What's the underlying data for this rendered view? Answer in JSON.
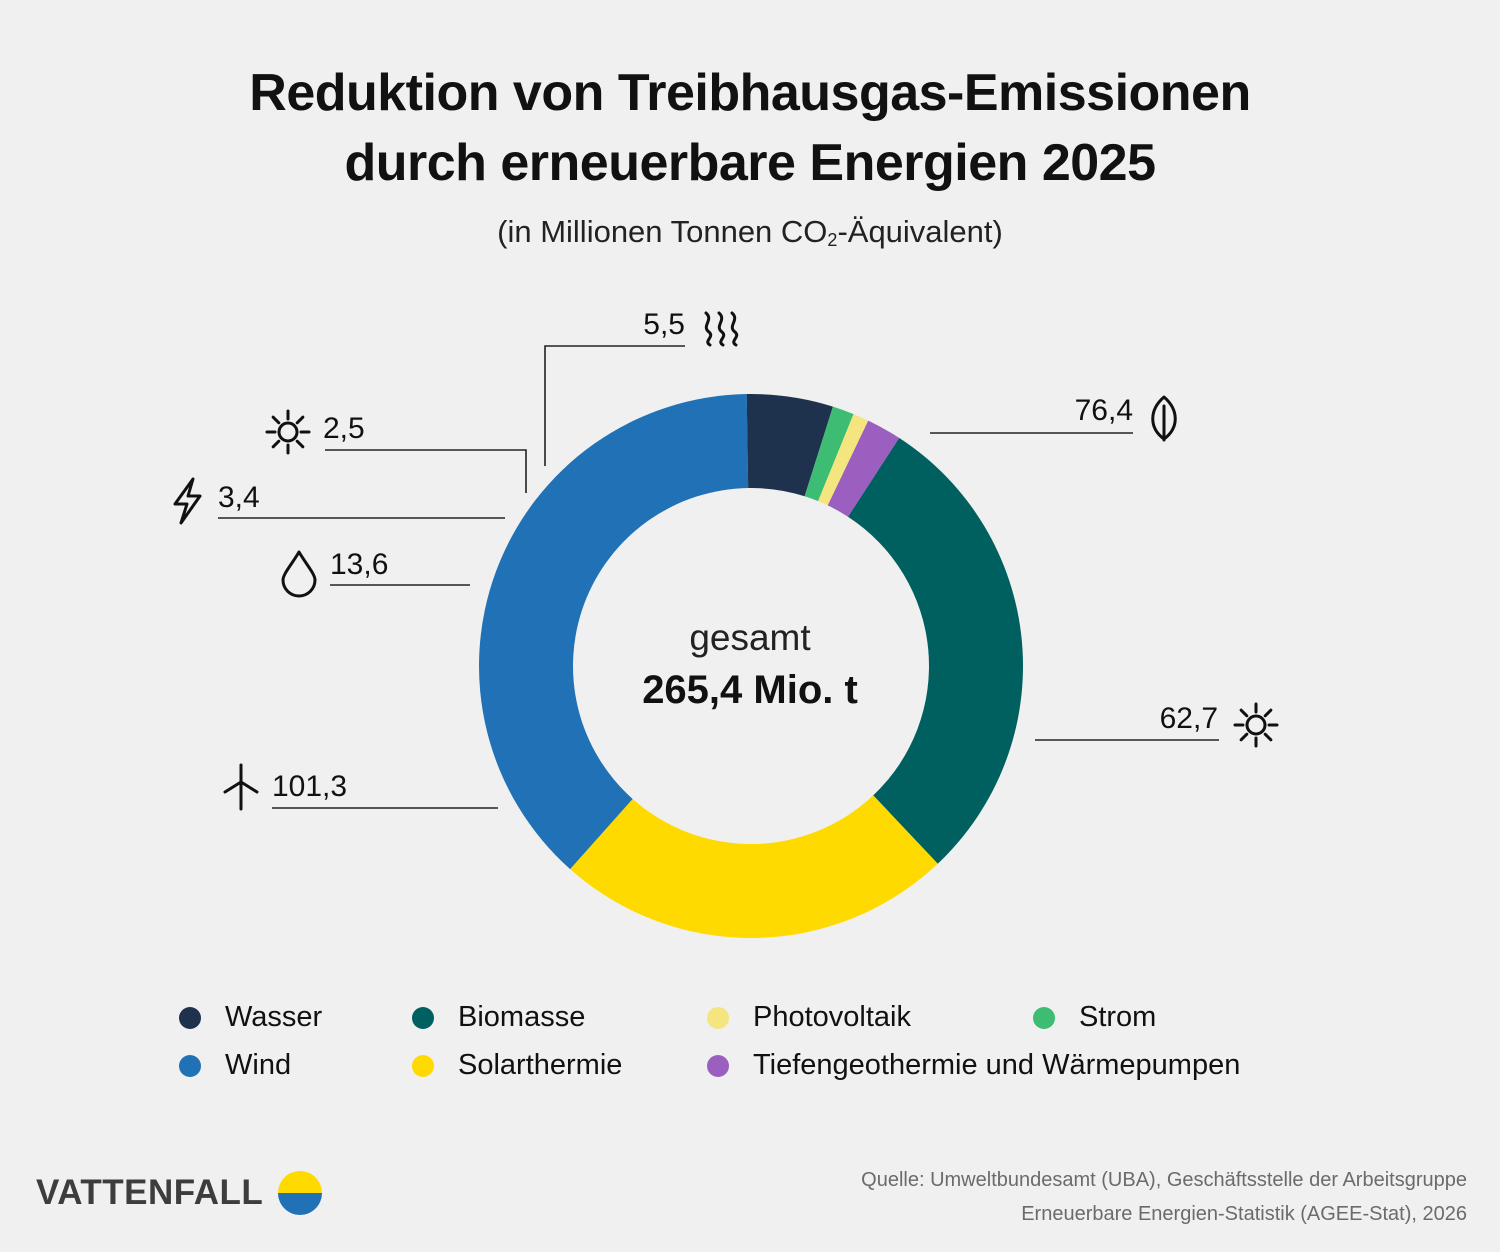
{
  "title_line1": "Reduktion von Treibhausgas-Emissionen",
  "title_line2": "durch erneuerbare Energien 2025",
  "subtitle_pre": "(in Millionen Tonnen CO",
  "subtitle_sub": "2",
  "subtitle_post": "-Äquivalent)",
  "center_label": "gesamt",
  "center_value": "265,4 Mio. t",
  "chart_data": {
    "type": "pie",
    "donut": true,
    "unit": "Mio. t CO2-Äquivalent",
    "total": 265.4,
    "series": [
      {
        "name": "Biomasse",
        "value": 76.4,
        "label": "76,4",
        "color": "#00605f",
        "icon": "leaf-icon"
      },
      {
        "name": "Solarthermie",
        "value": 62.7,
        "label": "62,7",
        "color": "#ffda00",
        "icon": "sun-icon"
      },
      {
        "name": "Wind",
        "value": 101.3,
        "label": "101,3",
        "color": "#2071b5",
        "icon": "wind-turbine-icon"
      },
      {
        "name": "Wasser",
        "value": 13.6,
        "label": "13,6",
        "color": "#1e324e",
        "icon": "water-drop-icon"
      },
      {
        "name": "Strom",
        "value": 3.4,
        "label": "3,4",
        "color": "#3dbc73",
        "icon": "lightning-icon"
      },
      {
        "name": "Photovoltaik",
        "value": 2.5,
        "label": "2,5",
        "color": "#f5e57f",
        "icon": "sun-icon"
      },
      {
        "name": "Tiefengeothermie und Wärmepumpen",
        "value": 5.5,
        "label": "5,5",
        "color": "#9b5fc0",
        "icon": "heat-waves-icon"
      }
    ],
    "legend_position": "bottom",
    "legend": [
      {
        "name": "Wasser",
        "color": "#1e324e"
      },
      {
        "name": "Biomasse",
        "color": "#00605f"
      },
      {
        "name": "Photovoltaik",
        "color": "#f5e57f"
      },
      {
        "name": "Strom",
        "color": "#3dbc73"
      },
      {
        "name": "Wind",
        "color": "#2071b5"
      },
      {
        "name": "Solarthermie",
        "color": "#ffda00"
      },
      {
        "name": "Tiefengeothermie und Wärmepumpen",
        "color": "#9b5fc0"
      }
    ]
  },
  "brand": {
    "name": "VATTENFALL",
    "colors": [
      "#ffda00",
      "#2071b5"
    ]
  },
  "source_line1": "Quelle: Umweltbundesamt (UBA), Geschäftsstelle der Arbeitsgruppe",
  "source_line2": "Erneuerbare Energien-Statistik (AGEE-Stat), 2026"
}
